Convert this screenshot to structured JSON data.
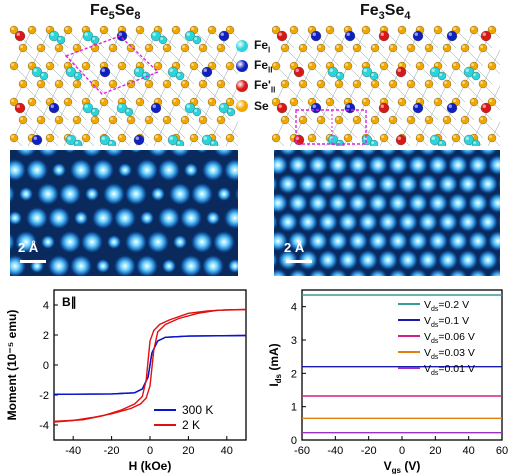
{
  "panels": {
    "left_title_main": "Fe",
    "left_title_sub1": "5",
    "left_title_mid": "Se",
    "left_title_sub2": "8",
    "right_title_main": "Fe",
    "right_title_sub1": "3",
    "right_title_mid": "Se",
    "right_title_sub2": "4"
  },
  "legend": [
    {
      "sym": "Fe",
      "sub": "I",
      "color": "#2ad4d8"
    },
    {
      "sym": "Fe",
      "sub": "II",
      "color": "#1020c0"
    },
    {
      "sym": "Fe'",
      "sub": "II",
      "color": "#d81818"
    },
    {
      "sym": "Se",
      "sub": "",
      "color": "#f0a800"
    }
  ],
  "scalebars": {
    "left": "2 Å",
    "right": "2 Å"
  },
  "colors": {
    "cyan": "#2ad4d8",
    "blue": "#1020c0",
    "red": "#d81818",
    "gold": "#f0a800",
    "magenta": "#e020e0"
  },
  "chart_data": [
    {
      "type": "line",
      "annotation": "B∥",
      "xlabel": "H (kOe)",
      "ylabel": "Moment (10⁻⁵ emu)",
      "xlim": [
        -50,
        50
      ],
      "ylim": [
        -5,
        5
      ],
      "xticks": [
        -40,
        -20,
        0,
        20,
        40
      ],
      "yticks": [
        -4,
        -2,
        0,
        2,
        4
      ],
      "series": [
        {
          "name": "300 K",
          "color": "#0a14c8",
          "branch_up": [
            [
              -50,
              -1.95
            ],
            [
              -20,
              -1.93
            ],
            [
              -8,
              -1.85
            ],
            [
              -4,
              -1.6
            ],
            [
              -1,
              -0.8
            ],
            [
              0,
              0
            ],
            [
              1,
              0.8
            ],
            [
              4,
              1.6
            ],
            [
              8,
              1.85
            ],
            [
              20,
              1.93
            ],
            [
              50,
              1.97
            ]
          ],
          "branch_down": [
            [
              50,
              1.97
            ],
            [
              20,
              1.93
            ],
            [
              8,
              1.85
            ],
            [
              4,
              1.6
            ],
            [
              1,
              0.8
            ],
            [
              0,
              0
            ],
            [
              -1,
              -0.8
            ],
            [
              -4,
              -1.6
            ],
            [
              -8,
              -1.85
            ],
            [
              -20,
              -1.93
            ],
            [
              -50,
              -1.95
            ]
          ]
        },
        {
          "name": "2 K",
          "color": "#e01010",
          "branch_up": [
            [
              -50,
              -3.8
            ],
            [
              -40,
              -3.7
            ],
            [
              -30,
              -3.5
            ],
            [
              -20,
              -3.25
            ],
            [
              -10,
              -2.9
            ],
            [
              -5,
              -2.6
            ],
            [
              -2,
              -2.2
            ],
            [
              0,
              -1.4
            ],
            [
              2,
              1.0
            ],
            [
              4,
              2.2
            ],
            [
              8,
              2.7
            ],
            [
              15,
              3.1
            ],
            [
              25,
              3.45
            ],
            [
              35,
              3.65
            ],
            [
              50,
              3.7
            ]
          ],
          "branch_down": [
            [
              50,
              3.7
            ],
            [
              40,
              3.68
            ],
            [
              30,
              3.6
            ],
            [
              20,
              3.45
            ],
            [
              10,
              3.0
            ],
            [
              5,
              2.7
            ],
            [
              2,
              2.3
            ],
            [
              0,
              1.6
            ],
            [
              -2,
              -1.0
            ],
            [
              -4,
              -2.1
            ],
            [
              -8,
              -2.6
            ],
            [
              -15,
              -3.0
            ],
            [
              -25,
              -3.4
            ],
            [
              -35,
              -3.65
            ],
            [
              -50,
              -3.75
            ]
          ]
        }
      ]
    },
    {
      "type": "line",
      "xlabel": "V_gs (V)",
      "ylabel": "I_ds (mA)",
      "xlim": [
        -60,
        60
      ],
      "ylim": [
        0,
        4.5
      ],
      "xticks": [
        -60,
        -40,
        -20,
        0,
        20,
        40,
        60
      ],
      "yticks": [
        0,
        1,
        2,
        3,
        4
      ],
      "series": [
        {
          "name": "V_ds=0.2 V",
          "label_main": "V",
          "label_sub": "ds",
          "label_rest": "=0.2 V",
          "color": "#3a9a9a",
          "value": 4.35
        },
        {
          "name": "V_ds=0.1 V",
          "label_main": "V",
          "label_sub": "ds",
          "label_rest": "=0.1 V",
          "color": "#1a1ab0",
          "value": 2.2
        },
        {
          "name": "V_ds=0.06 V",
          "label_main": "V",
          "label_sub": "ds",
          "label_rest": "=0.06 V",
          "color": "#d0208a",
          "value": 1.32
        },
        {
          "name": "V_ds=0.03 V",
          "label_main": "V",
          "label_sub": "ds",
          "label_rest": "=0.03 V",
          "color": "#e08010",
          "value": 0.65
        },
        {
          "name": "V_ds=0.01 V",
          "label_main": "V",
          "label_sub": "ds",
          "label_rest": "=0.01 V",
          "color": "#9a30c8",
          "value": 0.22
        }
      ]
    }
  ]
}
